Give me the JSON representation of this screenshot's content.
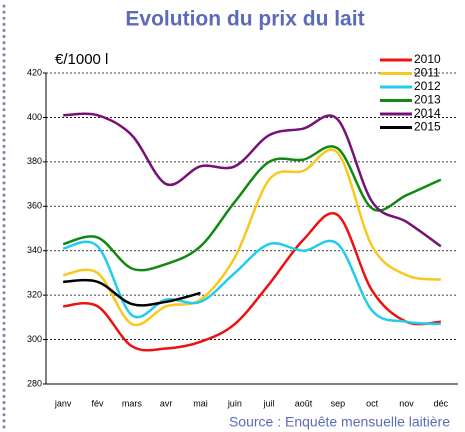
{
  "chart_data": {
    "type": "line",
    "title": "Evolution du prix du lait",
    "y_label": "€/1000 l",
    "source": "Source : Enquête mensuelle laitière",
    "categories": [
      "janv",
      "fév",
      "mars",
      "avr",
      "mai",
      "juin",
      "juil",
      "août",
      "sep",
      "oct",
      "nov",
      "déc"
    ],
    "series": [
      {
        "name": "2010",
        "color": "#ee1111",
        "values": [
          315,
          315,
          297,
          296,
          299,
          307,
          325,
          345,
          356,
          322,
          308,
          308
        ]
      },
      {
        "name": "2011",
        "color": "#f8c81c",
        "values": [
          329,
          330,
          307,
          315,
          318,
          337,
          372,
          376,
          384,
          342,
          329,
          327
        ]
      },
      {
        "name": "2012",
        "color": "#22ccee",
        "values": [
          341,
          342,
          311,
          318,
          317,
          330,
          343,
          340,
          343,
          313,
          308,
          307
        ]
      },
      {
        "name": "2013",
        "color": "#118811",
        "values": [
          343,
          346,
          332,
          334,
          342,
          362,
          380,
          381,
          386,
          359,
          365,
          372
        ]
      },
      {
        "name": "2014",
        "color": "#771177",
        "values": [
          401,
          401,
          392,
          370,
          378,
          378,
          392,
          395,
          399,
          362,
          353,
          342
        ]
      },
      {
        "name": "2015",
        "color": "#000000",
        "values": [
          326,
          326,
          316,
          317,
          321,
          null,
          null,
          null,
          null,
          null,
          null,
          null
        ]
      }
    ],
    "ylim": [
      280,
      420
    ],
    "yticks": [
      280,
      300,
      320,
      340,
      360,
      380,
      400,
      420
    ],
    "grid": true,
    "legend": "top-right"
  }
}
